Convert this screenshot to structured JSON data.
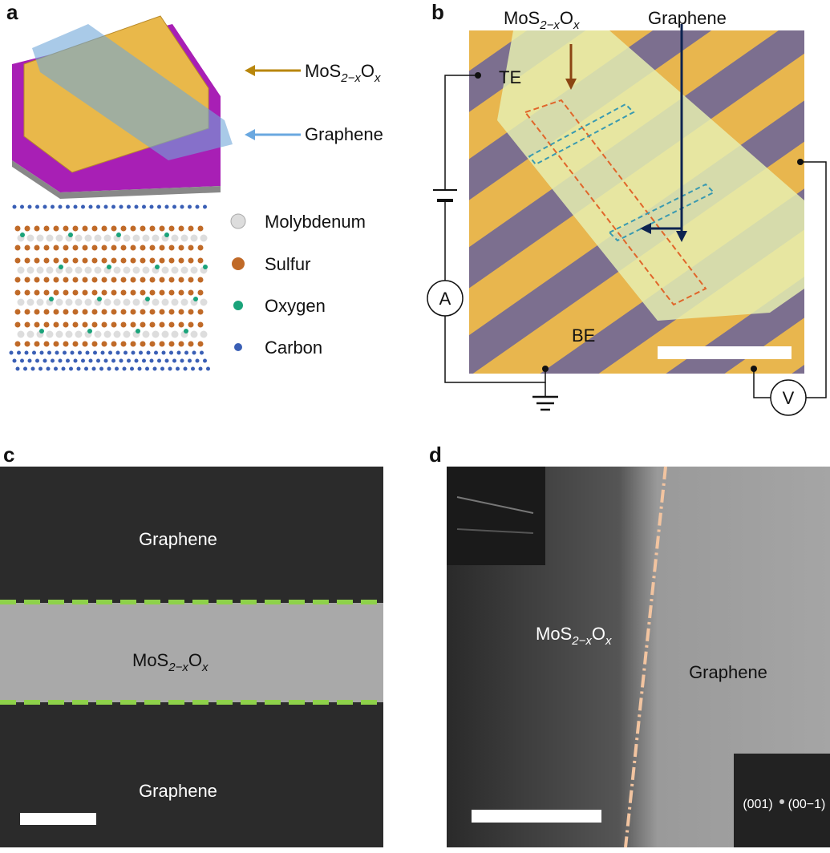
{
  "panel_a": {
    "label": "a",
    "device_labels": {
      "oxide": {
        "base": "MoS",
        "sub1": "2−x",
        "mid": "O",
        "sub2": "x"
      },
      "graphene": "Graphene"
    },
    "legend": [
      "Molybdenum",
      "Sulfur",
      "Oxygen",
      "Carbon"
    ]
  },
  "panel_b": {
    "label": "b",
    "top_labels": {
      "oxide": {
        "base": "MoS",
        "sub1": "2−x",
        "mid": "O",
        "sub2": "x"
      },
      "graphene": "Graphene"
    },
    "electrodes": {
      "top": "TE",
      "bottom": "BE"
    },
    "meters": {
      "ammeter": "A",
      "voltmeter": "V"
    }
  },
  "panel_c": {
    "label": "c",
    "top": "Graphene",
    "middle": {
      "base": "MoS",
      "sub1": "2−x",
      "mid": "O",
      "sub2": "x"
    },
    "bottom": "Graphene"
  },
  "panel_d": {
    "label": "d",
    "left": {
      "base": "MoS",
      "sub1": "2−x",
      "mid": "O",
      "sub2": "x"
    },
    "right": "Graphene",
    "fft_labels": [
      "(001)",
      "(00−1)"
    ]
  }
}
